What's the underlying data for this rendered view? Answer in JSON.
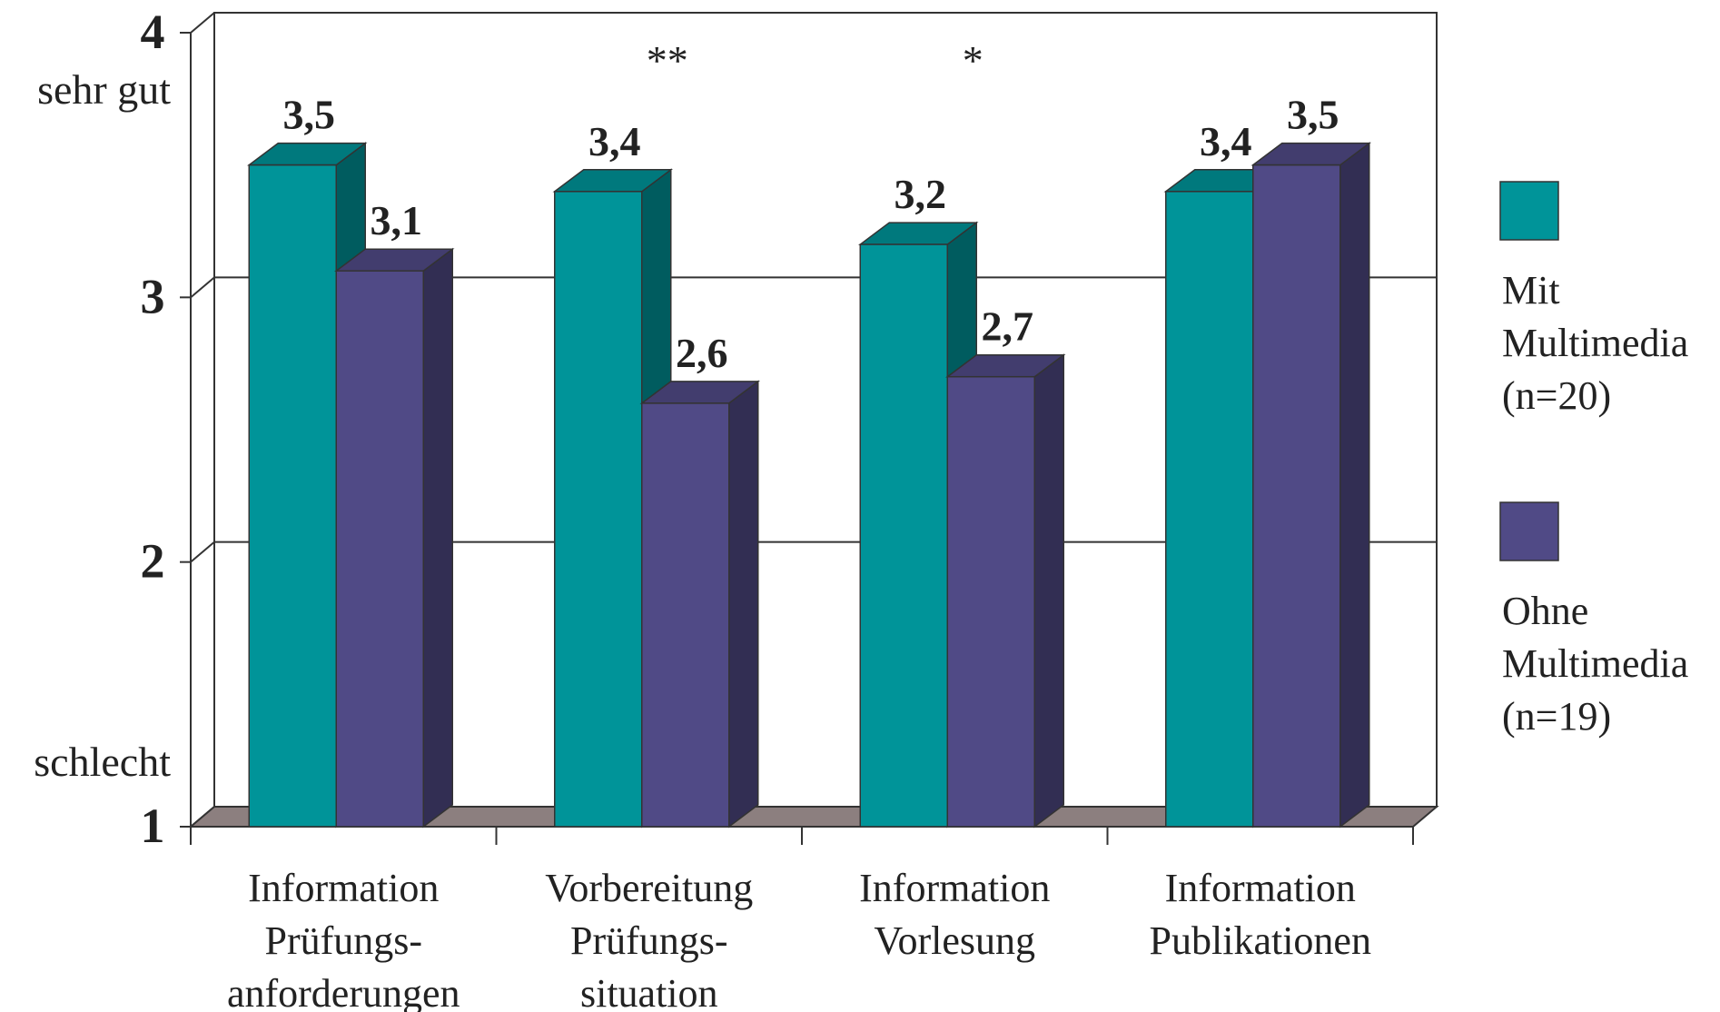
{
  "chart_data": {
    "type": "bar",
    "style": "3d-clustered-column",
    "categories": [
      [
        "Information",
        "Prüfungs-",
        "anforderungen"
      ],
      [
        "Vorbereitung",
        "Prüfungs-",
        "situation"
      ],
      [
        "Information",
        "Vorlesung"
      ],
      [
        "Information",
        "Publikationen"
      ]
    ],
    "series": [
      {
        "name": "Mit Multimedia (n=20)",
        "legend_lines": [
          "Mit",
          "Multimedia",
          "(n=20)"
        ],
        "color": "#009499",
        "values": [
          3.5,
          3.4,
          3.2,
          3.4
        ]
      },
      {
        "name": "Ohne Multimedia (n=19)",
        "legend_lines": [
          "Ohne",
          "Multimedia",
          "(n=19)"
        ],
        "color": "#504a86",
        "values": [
          3.1,
          2.6,
          2.7,
          3.5
        ]
      }
    ],
    "data_labels": [
      [
        "3,5",
        "3,4",
        "3,2",
        "3,4"
      ],
      [
        "3,1",
        "2,6",
        "2,7",
        "3,5"
      ]
    ],
    "significance": [
      "",
      "**",
      "*",
      ""
    ],
    "ylim": [
      1,
      4
    ],
    "yticks": [
      "1",
      "2",
      "3",
      "4"
    ],
    "ylabel_top": "sehr gut",
    "ylabel_bottom": "schlecht",
    "grid": true,
    "legend_position": "right",
    "colors": {
      "floor": "#8c7f7f",
      "grid": "#333333"
    }
  }
}
